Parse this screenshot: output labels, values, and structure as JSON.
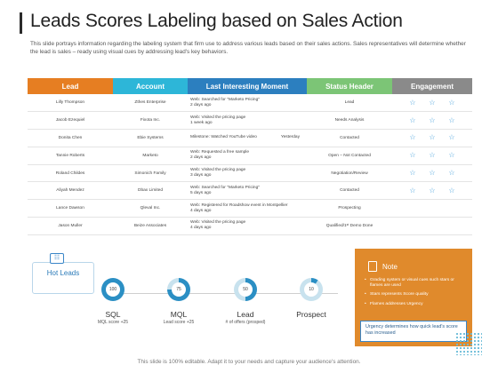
{
  "title": "Leads Scores Labeling based on Sales Action",
  "description": "This slide portrays information regarding the labeling system that firm use to address various leads based on their sales actions. Sales representatives will determine whether the lead is sales – ready using visual cues by addressing lead's key behaviors.",
  "table": {
    "headers": {
      "lead": "Lead",
      "account": "Account",
      "moment": "Last Interesting Moment",
      "status": "Status Header",
      "engagement": "Engagement"
    },
    "rows": [
      {
        "lead": "Lilly Thompson",
        "account": "Zthes Enterprise",
        "moment1": "Web: Searched for \"Marketo Pricing\"",
        "moment2": "2 days ago",
        "moment_right": "",
        "status": "Lead",
        "stars": 3
      },
      {
        "lead": "Jacob Ezequiel",
        "account": "Fixota Inc.",
        "moment1": "Web: Visited the pricing page",
        "moment2": "1 week ago",
        "moment_right": "",
        "status": "Needs Analysis",
        "stars": 3
      },
      {
        "lead": "Donita Chen",
        "account": "Ebie Systems",
        "moment1": "Milestone: Watched YouTube video",
        "moment2": "",
        "moment_right": "Yesterday",
        "status": "Contacted",
        "stars": 3
      },
      {
        "lead": "Tannie Roberts",
        "account": "Marketo",
        "moment1": "Web: Requested a free sample",
        "moment2": "2 days ago",
        "moment_right": "",
        "status": "Open – Not Contacted",
        "stars": 3
      },
      {
        "lead": "Roland Childes",
        "account": "Simonich Family",
        "moment1": "Web: Visited the pricing page",
        "moment2": "3 days ago",
        "moment_right": "",
        "status": "Negotiation/Review",
        "stars": 3
      },
      {
        "lead": "Aliyah Mendez",
        "account": "Dbax Limited",
        "moment1": "Web: Searched for \"Marketo Pricing\"",
        "moment2": "5 days ago",
        "moment_right": "",
        "status": "Contacted",
        "stars": 3
      },
      {
        "lead": "Lance Dawson",
        "account": "Qleval Inc.",
        "moment1": "Web: Registered for Roadshow event in Montpellier",
        "moment2": "4 days ago",
        "moment_right": "",
        "status": "Prospecting",
        "stars": 0
      },
      {
        "lead": "Jason Muller",
        "account": "Beize Associates",
        "moment1": "Web: Visited the pricing page",
        "moment2": "4 days ago",
        "moment_right": "",
        "status": "Qualified/1ˢᵗ Demo Done",
        "stars": 0
      }
    ]
  },
  "hot_leads": {
    "label": "Hot Leads"
  },
  "stages": [
    {
      "score": "100",
      "name": "SQL",
      "sub": "MQL score +25",
      "level": 100
    },
    {
      "score": "75",
      "name": "MQL",
      "sub": "Lead score +25",
      "level": 75
    },
    {
      "score": "50",
      "name": "Lead",
      "sub": "# of offers (prosped)",
      "level": 50
    },
    {
      "score": "10",
      "name": "Prospect",
      "sub": "",
      "level": 10
    }
  ],
  "note": {
    "title": "Note",
    "items": [
      "Grading system or visual cues such stars or flames are used",
      "Stars represents Score quality",
      "Flames addresses Urgency"
    ],
    "callout": "Urgency determines how quick lead's score has increased"
  },
  "footer": "This slide is 100% editable. Adapt it to your needs and capture your audience's attention.",
  "colors": {
    "lead": "#e67e22",
    "account": "#2db6d8",
    "moment": "#2c7fbf",
    "status": "#7cc576",
    "engagement": "#8a8a8a",
    "ring": "#2b8fc4",
    "note": "#e08a2c"
  }
}
